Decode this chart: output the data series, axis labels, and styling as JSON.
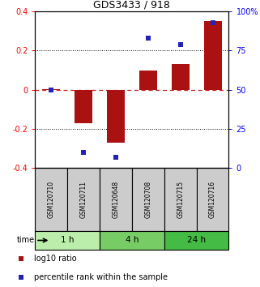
{
  "title": "GDS3433 / 918",
  "samples": [
    "GSM120710",
    "GSM120711",
    "GSM120648",
    "GSM120708",
    "GSM120715",
    "GSM120716"
  ],
  "log10_ratio": [
    0.003,
    -0.17,
    -0.27,
    0.1,
    0.13,
    0.35
  ],
  "percentile_rank": [
    50,
    10,
    7,
    83,
    79,
    93
  ],
  "ylim": [
    -0.4,
    0.4
  ],
  "yticks_left": [
    -0.4,
    -0.2,
    0.0,
    0.2,
    0.4
  ],
  "yticks_left_labels": [
    "-0.4",
    "-0.2",
    "0",
    "0.2",
    "0.4"
  ],
  "yticks_right": [
    0,
    25,
    50,
    75,
    100
  ],
  "yticks_right_labels": [
    "0",
    "25",
    "50",
    "75",
    "100%"
  ],
  "bar_color": "#AA1111",
  "dot_color": "#2222BB",
  "hline_color": "#CC2222",
  "dotted_color": "#000000",
  "groups": [
    {
      "label": "1 h",
      "samples": [
        0,
        1
      ],
      "color": "#BBEEAA"
    },
    {
      "label": "4 h",
      "samples": [
        2,
        3
      ],
      "color": "#77CC66"
    },
    {
      "label": "24 h",
      "samples": [
        4,
        5
      ],
      "color": "#44BB44"
    }
  ],
  "time_label": "time",
  "legend_bar": "log10 ratio",
  "legend_dot": "percentile rank within the sample",
  "bar_width": 0.55,
  "sample_box_color": "#CCCCCC",
  "bg_color": "#FFFFFF"
}
